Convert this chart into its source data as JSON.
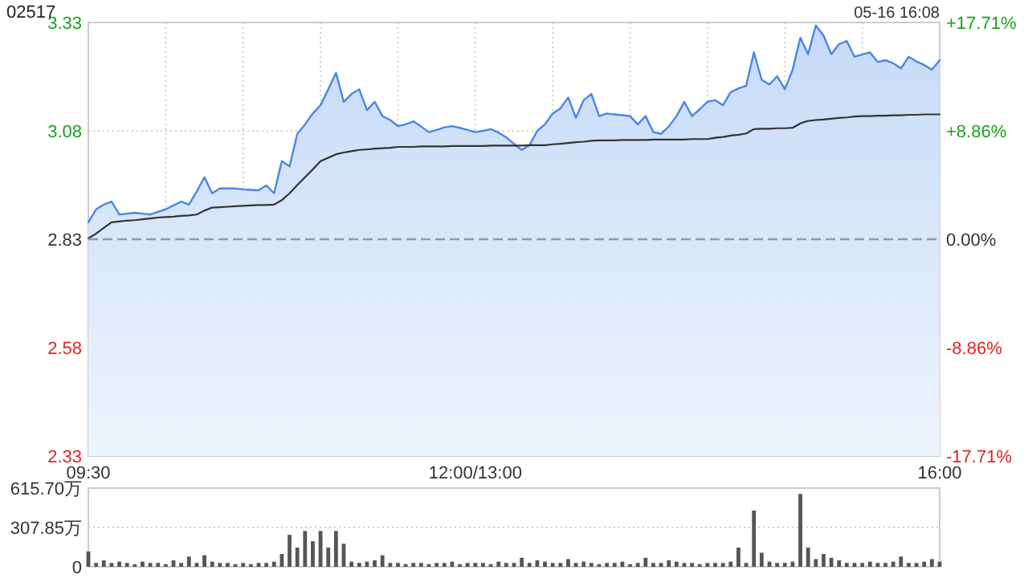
{
  "chart_data": [
    {
      "type": "area",
      "title": "02517",
      "annotations": [
        "05-16 16:08"
      ],
      "categories": [
        "09:30",
        null,
        null,
        null,
        null,
        null,
        null,
        null,
        null,
        null,
        null,
        null,
        null,
        null,
        null,
        null,
        null,
        null,
        null,
        null,
        null,
        null,
        null,
        null,
        null,
        null,
        null,
        null,
        null,
        null,
        null,
        null,
        null,
        null,
        null,
        null,
        null,
        null,
        null,
        null,
        null,
        null,
        null,
        null,
        null,
        null,
        null,
        null,
        null,
        null,
        "12:00/13:00",
        null,
        null,
        null,
        null,
        null,
        null,
        null,
        null,
        null,
        null,
        null,
        null,
        null,
        null,
        null,
        null,
        null,
        null,
        null,
        null,
        null,
        null,
        null,
        null,
        null,
        null,
        null,
        null,
        null,
        null,
        null,
        null,
        null,
        null,
        null,
        null,
        null,
        null,
        null,
        null,
        null,
        null,
        null,
        null,
        null,
        null,
        null,
        null,
        null,
        null,
        null,
        null,
        null,
        null,
        null,
        null,
        null,
        null,
        null,
        "16:00"
      ],
      "ylim": [
        2.33,
        3.33
      ],
      "yticks": [
        2.33,
        2.58,
        2.83,
        3.08,
        3.33
      ],
      "y2lim": [
        -17.71,
        17.71
      ],
      "y2ticks": [
        {
          "value": -17.71,
          "label": "-17.71%"
        },
        {
          "value": -8.86,
          "label": "-8.86%"
        },
        {
          "value": 0,
          "label": "0.00%"
        },
        {
          "value": 8.86,
          "label": "+8.86%"
        },
        {
          "value": 17.71,
          "label": "+17.71%"
        }
      ],
      "ref_lines": [
        {
          "axis": "y",
          "value": 2.83,
          "line_style": "dashed",
          "color": "#999999"
        }
      ],
      "grid": true,
      "series": [
        {
          "color": "#4a86e8",
          "values": [
            2.869,
            2.899,
            2.91,
            2.917,
            2.887,
            2.889,
            2.891,
            2.889,
            2.887,
            2.893,
            2.899,
            2.908,
            2.917,
            2.91,
            2.94,
            2.973,
            2.936,
            2.947,
            2.947,
            2.947,
            2.945,
            2.944,
            2.943,
            2.954,
            2.936,
            3.01,
            2.998,
            3.073,
            3.095,
            3.12,
            3.139,
            3.176,
            3.214,
            3.147,
            3.165,
            3.176,
            3.128,
            3.147,
            3.114,
            3.105,
            3.091,
            3.095,
            3.102,
            3.09,
            3.077,
            3.082,
            3.088,
            3.091,
            3.087,
            3.082,
            3.077,
            3.08,
            3.084,
            3.076,
            3.065,
            3.05,
            3.036,
            3.047,
            3.08,
            3.095,
            3.12,
            3.132,
            3.157,
            3.11,
            3.151,
            3.165,
            3.114,
            3.12,
            3.118,
            3.116,
            3.114,
            3.095,
            3.114,
            3.077,
            3.073,
            3.09,
            3.114,
            3.147,
            3.114,
            3.13,
            3.147,
            3.151,
            3.139,
            3.169,
            3.178,
            3.184,
            3.261,
            3.198,
            3.187,
            3.206,
            3.176,
            3.221,
            3.295,
            3.257,
            3.323,
            3.3,
            3.257,
            3.28,
            3.287,
            3.251,
            3.256,
            3.261,
            3.239,
            3.243,
            3.236,
            3.224,
            3.251,
            3.24,
            3.232,
            3.221,
            3.243
          ]
        },
        {
          "type": "line",
          "color": "#333333",
          "values": [
            2.832,
            2.843,
            2.856,
            2.869,
            2.871,
            2.873,
            2.874,
            2.876,
            2.878,
            2.88,
            2.881,
            2.882,
            2.884,
            2.885,
            2.887,
            2.896,
            2.903,
            2.904,
            2.905,
            2.906,
            2.907,
            2.908,
            2.909,
            2.909,
            2.91,
            2.92,
            2.936,
            2.955,
            2.973,
            2.991,
            3.01,
            3.018,
            3.026,
            3.03,
            3.033,
            3.036,
            3.037,
            3.039,
            3.04,
            3.041,
            3.043,
            3.043,
            3.043,
            3.044,
            3.044,
            3.044,
            3.044,
            3.045,
            3.045,
            3.045,
            3.045,
            3.045,
            3.046,
            3.046,
            3.046,
            3.046,
            3.046,
            3.047,
            3.047,
            3.047,
            3.049,
            3.05,
            3.052,
            3.054,
            3.055,
            3.057,
            3.058,
            3.058,
            3.058,
            3.059,
            3.059,
            3.059,
            3.059,
            3.06,
            3.06,
            3.06,
            3.06,
            3.06,
            3.061,
            3.061,
            3.061,
            3.064,
            3.066,
            3.069,
            3.071,
            3.074,
            3.084,
            3.085,
            3.085,
            3.086,
            3.086,
            3.087,
            3.097,
            3.103,
            3.105,
            3.106,
            3.108,
            3.11,
            3.111,
            3.113,
            3.114,
            3.114,
            3.115,
            3.115,
            3.116,
            3.116,
            3.117,
            3.117,
            3.118,
            3.118,
            3.118
          ]
        }
      ]
    },
    {
      "type": "bar",
      "color": "#555555",
      "ylim": [
        0,
        615.7
      ],
      "yticks": [
        0,
        {
          "value": 307.85,
          "label": "307.85万"
        },
        {
          "value": 615.7,
          "label": "615.70万"
        }
      ],
      "tick_labels": "y",
      "grid": "y",
      "categories": [
        null,
        null,
        null,
        null,
        null,
        null,
        null,
        null,
        null,
        null,
        null,
        null,
        null,
        null,
        null,
        null,
        null,
        null,
        null,
        null,
        null,
        null,
        null,
        null,
        null,
        null,
        null,
        null,
        null,
        null,
        null,
        null,
        null,
        null,
        null,
        null,
        null,
        null,
        null,
        null,
        null,
        null,
        null,
        null,
        null,
        null,
        null,
        null,
        null,
        null,
        null,
        null,
        null,
        null,
        null,
        null,
        null,
        null,
        null,
        null,
        null,
        null,
        null,
        null,
        null,
        null,
        null,
        null,
        null,
        null,
        null,
        null,
        null,
        null,
        null,
        null,
        null,
        null,
        null,
        null,
        null,
        null,
        null,
        null,
        null,
        null,
        null,
        null,
        null,
        null,
        null,
        null,
        null,
        null,
        null,
        null,
        null,
        null,
        null,
        null,
        null,
        null,
        null,
        null,
        null,
        null,
        null,
        null,
        null,
        null,
        null
      ],
      "values": [
        120,
        30,
        50,
        30,
        40,
        30,
        20,
        40,
        30,
        30,
        20,
        50,
        30,
        80,
        30,
        90,
        40,
        30,
        30,
        20,
        30,
        20,
        30,
        30,
        40,
        100,
        250,
        150,
        280,
        200,
        280,
        150,
        280,
        180,
        40,
        30,
        40,
        50,
        90,
        30,
        30,
        20,
        30,
        30,
        20,
        30,
        30,
        40,
        20,
        30,
        30,
        30,
        20,
        40,
        30,
        30,
        70,
        30,
        50,
        40,
        30,
        30,
        60,
        30,
        40,
        30,
        20,
        30,
        30,
        40,
        20,
        30,
        70,
        30,
        30,
        50,
        40,
        30,
        30,
        20,
        30,
        30,
        30,
        40,
        150,
        30,
        440,
        110,
        40,
        30,
        30,
        40,
        570,
        150,
        60,
        100,
        70,
        50,
        30,
        30,
        30,
        40,
        30,
        30,
        40,
        80,
        30,
        30,
        40,
        60,
        40
      ]
    }
  ]
}
